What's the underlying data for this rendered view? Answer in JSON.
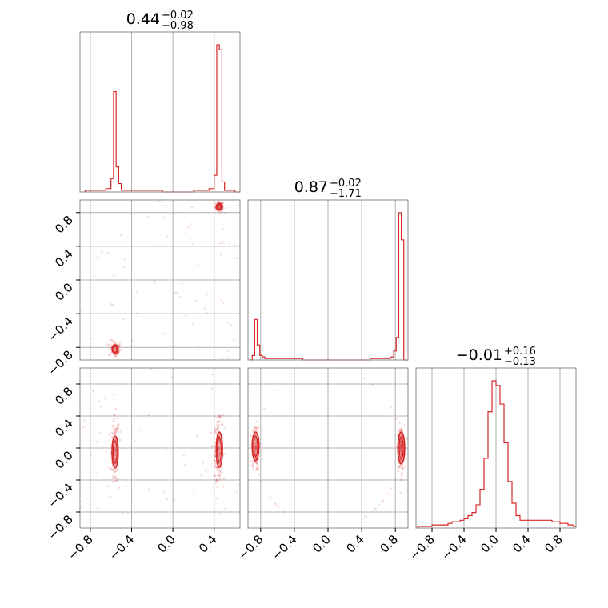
{
  "chart_data": {
    "type": "corner",
    "parameters": [
      {
        "title_value": "0.44",
        "title_upper": "+0.02",
        "title_lower": "−0.98"
      },
      {
        "title_value": "0.87",
        "title_upper": "+0.02",
        "title_lower": "−1.71"
      },
      {
        "title_value": "−0.01",
        "title_upper": "+0.16",
        "title_lower": "−0.13"
      }
    ],
    "axis_ranges": [
      [
        -0.9,
        0.65
      ],
      [
        -0.95,
        0.95
      ],
      [
        -1.0,
        1.0
      ]
    ],
    "tick_labels": {
      "col0": [
        "−0.8",
        "−0.4",
        "0.0",
        "0.4"
      ],
      "col1": [
        "−0.8",
        "−0.4",
        "0.0",
        "0.4",
        "0.8"
      ],
      "col2": [
        "−0.8",
        "−0.4",
        "0.0",
        "0.4",
        "0.8"
      ],
      "row1": [
        "0.8",
        "0.4",
        "0.0",
        "−0.4",
        "−0.8"
      ],
      "row2": [
        "0.8",
        "0.4",
        "0.0",
        "−0.4",
        "−0.8"
      ]
    },
    "tick_values": {
      "col0": [
        -0.8,
        -0.4,
        0.0,
        0.4
      ],
      "col1": [
        -0.8,
        -0.4,
        0.0,
        0.4,
        0.8
      ],
      "col2": [
        -0.8,
        -0.4,
        0.0,
        0.4,
        0.8
      ],
      "row1": [
        0.8,
        0.4,
        0.0,
        -0.4,
        -0.8
      ],
      "row2": [
        0.8,
        0.4,
        0.0,
        -0.4,
        -0.8
      ]
    },
    "histograms": [
      {
        "x": [
          -0.85,
          -0.8,
          -0.75,
          -0.7,
          -0.65,
          -0.6,
          -0.575,
          -0.55,
          -0.525,
          -0.5,
          -0.45,
          -0.4,
          -0.35,
          -0.3,
          -0.25,
          -0.2,
          -0.1,
          0.0,
          0.1,
          0.2,
          0.3,
          0.35,
          0.4,
          0.425,
          0.45,
          0.475,
          0.5,
          0.55,
          0.6
        ],
        "y": [
          0.01,
          0.01,
          0.01,
          0.01,
          0.02,
          0.08,
          0.6,
          0.15,
          0.05,
          0.01,
          0.01,
          0.01,
          0.01,
          0.01,
          0.01,
          0.01,
          0.0,
          0.0,
          0.0,
          0.01,
          0.01,
          0.02,
          0.1,
          0.88,
          0.85,
          0.06,
          0.01,
          0.01,
          0.0
        ]
      },
      {
        "x": [
          -0.93,
          -0.9,
          -0.87,
          -0.84,
          -0.81,
          -0.78,
          -0.75,
          -0.7,
          -0.6,
          -0.5,
          -0.3,
          -0.1,
          0.1,
          0.3,
          0.5,
          0.6,
          0.7,
          0.74,
          0.78,
          0.81,
          0.84,
          0.87,
          0.9
        ],
        "y": [
          0.0,
          0.03,
          0.27,
          0.1,
          0.03,
          0.02,
          0.01,
          0.01,
          0.01,
          0.01,
          0.0,
          0.0,
          0.0,
          0.0,
          0.01,
          0.01,
          0.01,
          0.02,
          0.06,
          0.15,
          0.98,
          0.8,
          0.0
        ]
      },
      {
        "x": [
          -0.98,
          -0.9,
          -0.8,
          -0.7,
          -0.6,
          -0.55,
          -0.5,
          -0.45,
          -0.4,
          -0.35,
          -0.3,
          -0.25,
          -0.2,
          -0.15,
          -0.1,
          -0.05,
          0.0,
          0.05,
          0.1,
          0.15,
          0.2,
          0.25,
          0.3,
          0.4,
          0.5,
          0.6,
          0.7,
          0.8,
          0.9,
          0.97
        ],
        "y": [
          0.01,
          0.01,
          0.02,
          0.02,
          0.03,
          0.04,
          0.04,
          0.05,
          0.06,
          0.08,
          0.1,
          0.15,
          0.25,
          0.45,
          0.75,
          0.95,
          0.92,
          0.8,
          0.55,
          0.3,
          0.16,
          0.08,
          0.05,
          0.05,
          0.05,
          0.05,
          0.04,
          0.03,
          0.02,
          0.01
        ]
      }
    ],
    "scatter_panels": [
      {
        "row": 1,
        "col": 0,
        "clusters": [
          {
            "x": 0.45,
            "y": 0.87,
            "sx": 0.02,
            "sy": 0.03,
            "n": 80
          },
          {
            "x": -0.56,
            "y": -0.82,
            "sx": 0.03,
            "sy": 0.05,
            "n": 60
          }
        ],
        "noise": 70,
        "contours": [
          {
            "x": 0.45,
            "y": 0.87,
            "rx": 0.03,
            "ry": 0.04
          },
          {
            "x": -0.56,
            "y": -0.82,
            "rx": 0.03,
            "ry": 0.05
          }
        ]
      },
      {
        "row": 2,
        "col": 0,
        "clusters": [
          {
            "x": 0.44,
            "y": -0.02,
            "sx": 0.02,
            "sy": 0.18,
            "n": 160
          },
          {
            "x": -0.56,
            "y": -0.05,
            "sx": 0.02,
            "sy": 0.22,
            "n": 140
          }
        ],
        "noise": 60,
        "contours": [
          {
            "x": 0.45,
            "y": -0.02,
            "rx": 0.03,
            "ry": 0.22
          },
          {
            "x": -0.56,
            "y": -0.05,
            "rx": 0.03,
            "ry": 0.2
          }
        ]
      },
      {
        "row": 2,
        "col": 1,
        "arc": true,
        "clusters": [
          {
            "x": 0.87,
            "y": 0.0,
            "sx": 0.02,
            "sy": 0.14,
            "n": 160
          },
          {
            "x": -0.86,
            "y": 0.0,
            "sx": 0.02,
            "sy": 0.14,
            "n": 120
          }
        ],
        "noise": 40,
        "contours": [
          {
            "x": 0.87,
            "y": 0.0,
            "rx": 0.04,
            "ry": 0.2
          },
          {
            "x": -0.86,
            "y": 0.02,
            "rx": 0.04,
            "ry": 0.18
          }
        ]
      }
    ],
    "colors": {
      "line": "#d62728",
      "grid": "#b0b0b0",
      "frame": "#888888"
    }
  }
}
